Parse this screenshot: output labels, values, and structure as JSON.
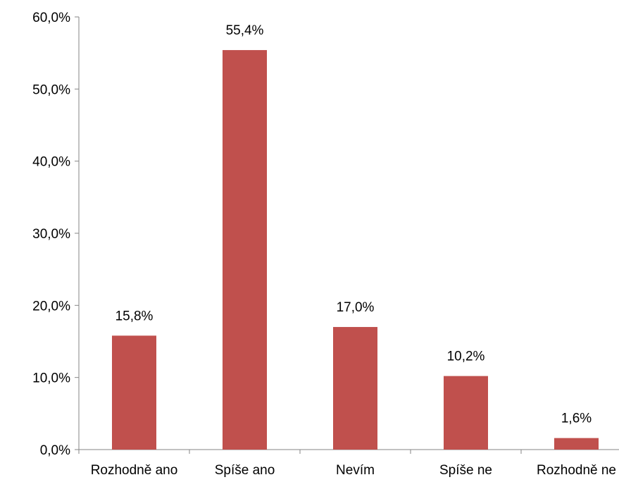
{
  "chart_data": {
    "type": "bar",
    "categories": [
      "Rozhodně ano",
      "Spíše ano",
      "Nevím",
      "Spíše ne",
      "Rozhodně ne"
    ],
    "values": [
      15.8,
      55.4,
      17.0,
      10.2,
      1.6
    ],
    "value_labels": [
      "15,8%",
      "55,4%",
      "17,0%",
      "10,2%",
      "1,6%"
    ],
    "y_ticks": [
      0,
      10,
      20,
      30,
      40,
      50,
      60
    ],
    "y_tick_labels": [
      "0,0%",
      "10,0%",
      "20,0%",
      "30,0%",
      "40,0%",
      "50,0%",
      "60,0%"
    ],
    "ylim": [
      0,
      60
    ],
    "grid": false,
    "legend": "none",
    "bar_color": "#c0504d"
  }
}
